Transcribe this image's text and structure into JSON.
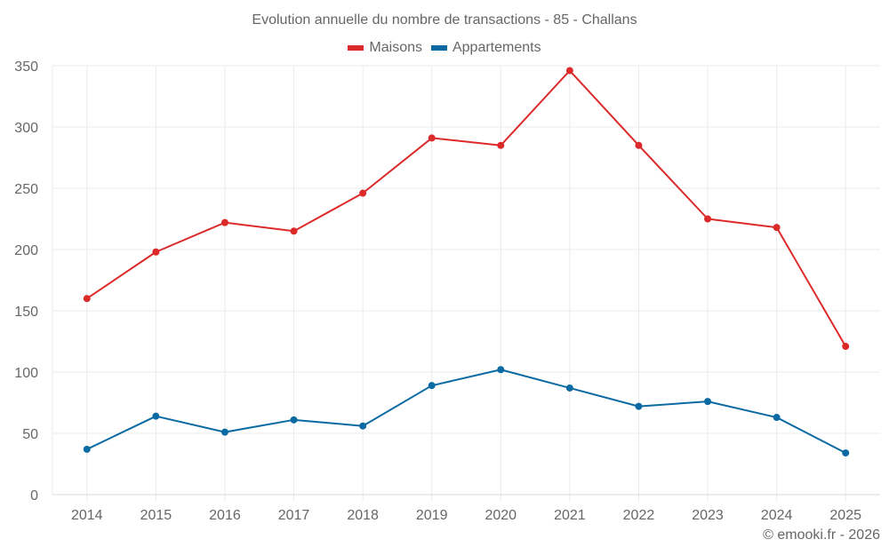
{
  "chart_data": {
    "type": "line",
    "title": "Evolution annuelle du nombre de transactions - 85 - Challans",
    "xlabel": "",
    "ylabel": "",
    "categories": [
      "2014",
      "2015",
      "2016",
      "2017",
      "2018",
      "2019",
      "2020",
      "2021",
      "2022",
      "2023",
      "2024",
      "2025"
    ],
    "ylim": [
      0,
      350
    ],
    "yticks": [
      0,
      50,
      100,
      150,
      200,
      250,
      300,
      350
    ],
    "grid": true,
    "legend_position": "top-center",
    "series": [
      {
        "name": "Maisons",
        "color": "#dc2a2a",
        "values": [
          160,
          198,
          222,
          215,
          246,
          291,
          285,
          346,
          285,
          225,
          218,
          121
        ]
      },
      {
        "name": "Appartements",
        "color": "#0b6aa2",
        "values": [
          37,
          64,
          51,
          61,
          56,
          89,
          102,
          87,
          72,
          76,
          63,
          34
        ]
      }
    ]
  },
  "credits": "© emooki.fr - 2026"
}
